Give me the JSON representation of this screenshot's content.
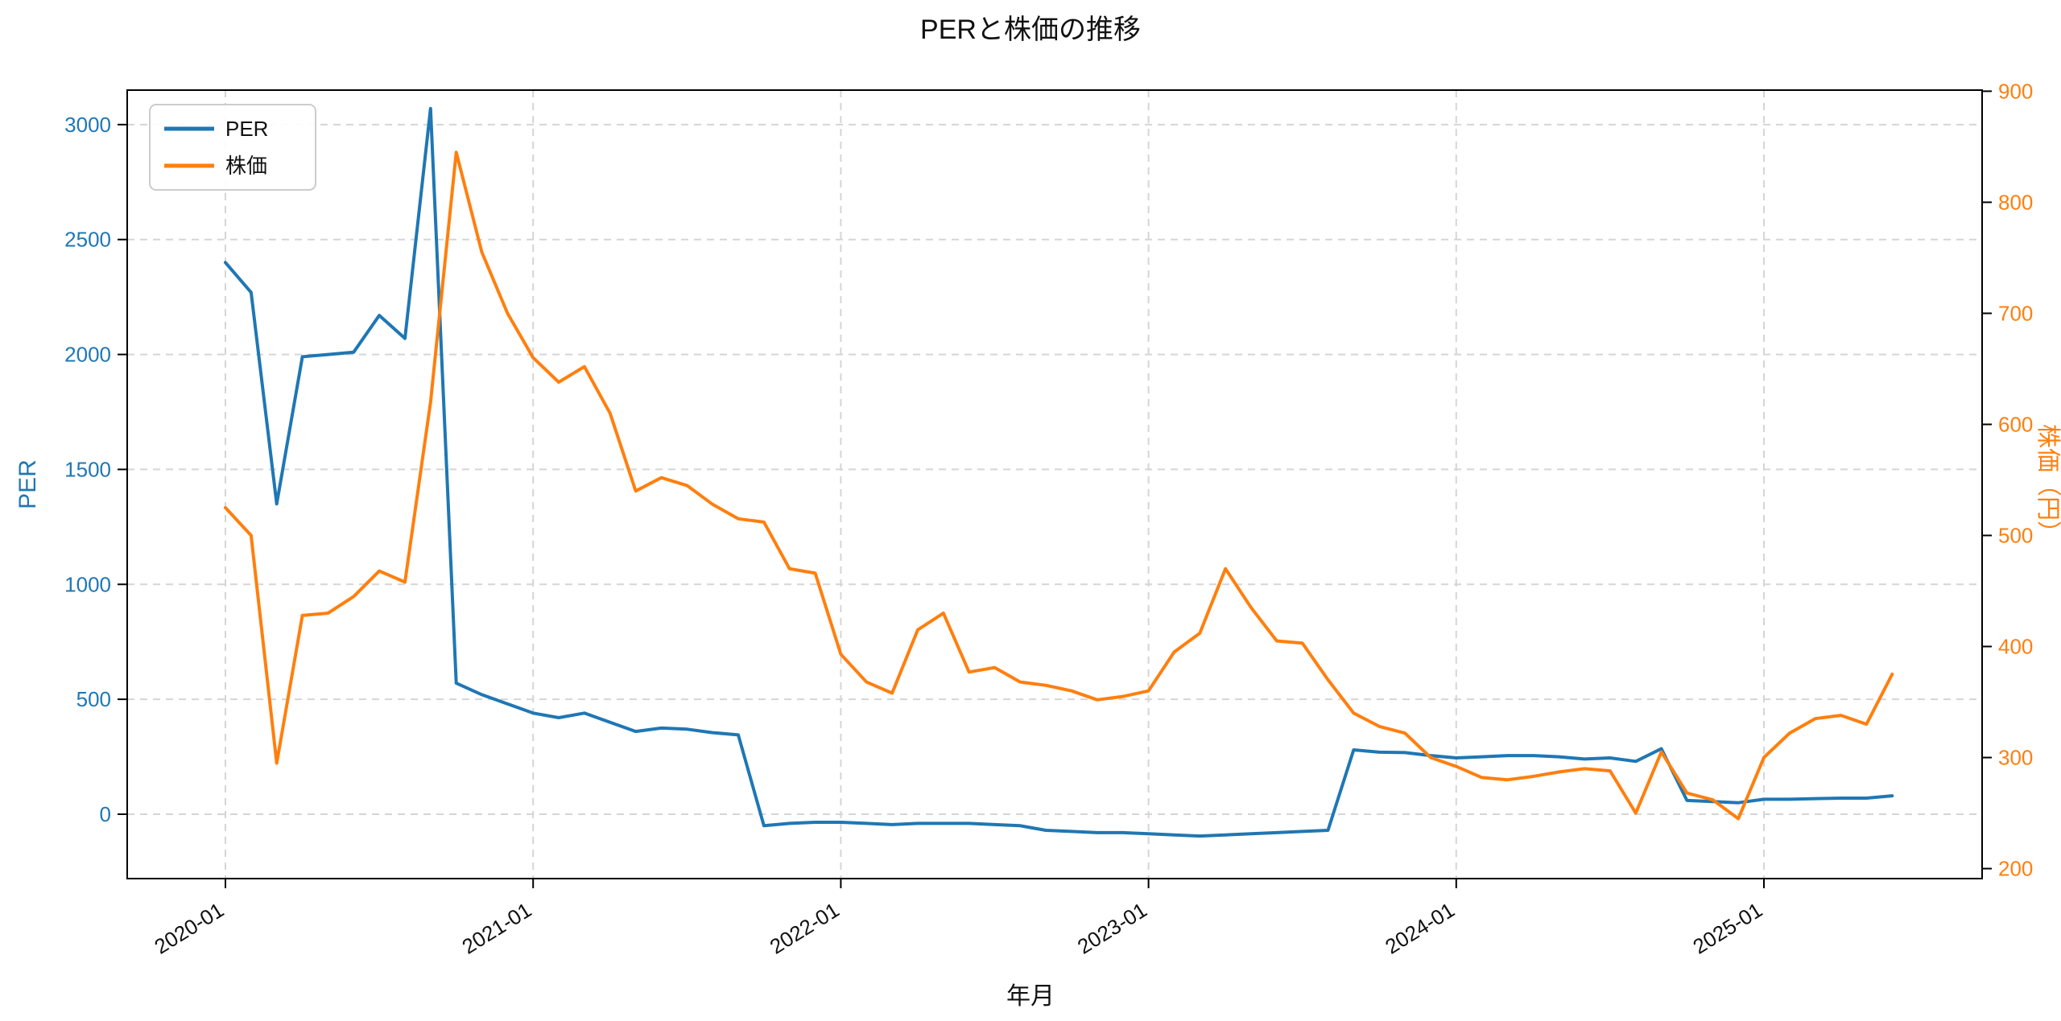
{
  "chart_data": {
    "type": "line",
    "title": "PERと株価の推移",
    "xlabel": "年月",
    "ylabel_left": "PER",
    "ylabel_right": "株価（円）",
    "grid": true,
    "legend_position": "upper left",
    "x": [
      "2020-01",
      "2020-02",
      "2020-03",
      "2020-04",
      "2020-05",
      "2020-06",
      "2020-07",
      "2020-08",
      "2020-09",
      "2020-10",
      "2020-11",
      "2020-12",
      "2021-01",
      "2021-02",
      "2021-03",
      "2021-04",
      "2021-05",
      "2021-06",
      "2021-07",
      "2021-08",
      "2021-09",
      "2021-10",
      "2021-11",
      "2021-12",
      "2022-01",
      "2022-02",
      "2022-03",
      "2022-04",
      "2022-05",
      "2022-06",
      "2022-07",
      "2022-08",
      "2022-09",
      "2022-10",
      "2022-11",
      "2022-12",
      "2023-01",
      "2023-02",
      "2023-03",
      "2023-04",
      "2023-05",
      "2023-06",
      "2023-07",
      "2023-08",
      "2023-09",
      "2023-10",
      "2023-11",
      "2023-12",
      "2024-01",
      "2024-02",
      "2024-03",
      "2024-04",
      "2024-05",
      "2024-06",
      "2024-07",
      "2024-08",
      "2024-09",
      "2024-10",
      "2024-11",
      "2024-12",
      "2025-01",
      "2025-02",
      "2025-03",
      "2025-04",
      "2025-05",
      "2025-06"
    ],
    "x_tick_labels": [
      "2020-01",
      "2021-01",
      "2022-01",
      "2023-01",
      "2024-01",
      "2025-01"
    ],
    "x_tick_indices": [
      0,
      12,
      24,
      36,
      48,
      60
    ],
    "left_axis": {
      "label": "PER",
      "color": "#1f77b4",
      "ticks": [
        0,
        500,
        1000,
        1500,
        2000,
        2500,
        3000
      ],
      "range": [
        -280,
        3150
      ]
    },
    "right_axis": {
      "label": "株価（円）",
      "color": "#ff7f0e",
      "ticks": [
        200,
        300,
        400,
        500,
        600,
        700,
        800,
        900
      ],
      "range": [
        191,
        901
      ]
    },
    "series": [
      {
        "name": "PER",
        "axis": "left",
        "color": "#1f77b4",
        "values": [
          2400,
          2270,
          1350,
          1990,
          2000,
          2010,
          2170,
          2070,
          3070,
          570,
          520,
          480,
          440,
          420,
          440,
          400,
          360,
          375,
          370,
          355,
          345,
          -50,
          -40,
          -35,
          -35,
          -40,
          -45,
          -40,
          -40,
          -40,
          -45,
          -50,
          -70,
          -75,
          -80,
          -80,
          -85,
          -90,
          -95,
          -90,
          -85,
          -80,
          -75,
          -70,
          280,
          270,
          268,
          255,
          245,
          250,
          255,
          255,
          250,
          240,
          245,
          230,
          285,
          60,
          55,
          50,
          65,
          65,
          68,
          70,
          70,
          80
        ]
      },
      {
        "name": "株価",
        "axis": "right",
        "color": "#ff7f0e",
        "values": [
          525,
          500,
          295,
          428,
          430,
          445,
          468,
          458,
          620,
          845,
          755,
          700,
          660,
          638,
          652,
          610,
          540,
          552,
          545,
          528,
          515,
          512,
          470,
          466,
          393,
          368,
          358,
          415,
          430,
          377,
          381,
          368,
          365,
          360,
          352,
          355,
          360,
          395,
          412,
          470,
          435,
          405,
          403,
          370,
          340,
          328,
          322,
          300,
          292,
          282,
          280,
          283,
          287,
          290,
          288,
          250,
          305,
          268,
          262,
          245,
          300,
          322,
          335,
          338,
          330,
          375
        ]
      }
    ],
    "colors": {
      "grid": "#d5d5d5",
      "spine": "#000000",
      "background": "#ffffff"
    }
  }
}
